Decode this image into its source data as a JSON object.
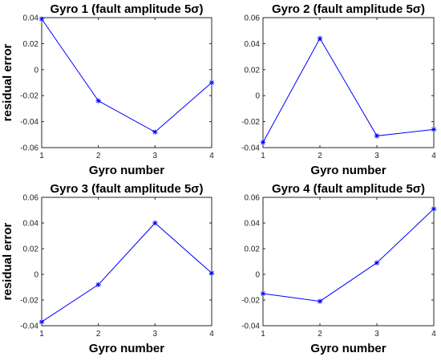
{
  "chart_data": [
    {
      "type": "line",
      "title": "Gyro 1 (fault amplitude 5σ)",
      "xlabel": "Gyro number",
      "ylabel": "residual error",
      "x": [
        1,
        2,
        3,
        4
      ],
      "values": [
        0.039,
        -0.024,
        -0.048,
        -0.01
      ],
      "xlim": [
        1,
        4
      ],
      "ylim": [
        -0.06,
        0.04
      ],
      "xticks": [
        "1",
        "2",
        "3",
        "4"
      ],
      "yticks": [
        "-0.06",
        "-0.04",
        "-0.02",
        "0",
        "0.02",
        "0.04"
      ],
      "ytick_values": [
        -0.06,
        -0.04,
        -0.02,
        0,
        0.02,
        0.04
      ],
      "line_color": "#0000ff",
      "marker": "asterisk",
      "grid": false
    },
    {
      "type": "line",
      "title": "Gyro 2 (fault amplitude 5σ)",
      "xlabel": "Gyro number",
      "ylabel": "",
      "x": [
        1,
        2,
        3,
        4
      ],
      "values": [
        -0.036,
        0.044,
        -0.031,
        -0.026
      ],
      "xlim": [
        1,
        4
      ],
      "ylim": [
        -0.04,
        0.06
      ],
      "xticks": [
        "1",
        "2",
        "3",
        "4"
      ],
      "yticks": [
        "-0.04",
        "-0.02",
        "0",
        "0.02",
        "0.04",
        "0.06"
      ],
      "ytick_values": [
        -0.04,
        -0.02,
        0,
        0.02,
        0.04,
        0.06
      ],
      "line_color": "#0000ff",
      "marker": "asterisk",
      "grid": false
    },
    {
      "type": "line",
      "title": "Gyro 3 (fault amplitude 5σ)",
      "xlabel": "Gyro number",
      "ylabel": "residual error",
      "x": [
        1,
        2,
        3,
        4
      ],
      "values": [
        -0.037,
        -0.008,
        0.04,
        0.001
      ],
      "xlim": [
        1,
        4
      ],
      "ylim": [
        -0.04,
        0.06
      ],
      "xticks": [
        "1",
        "2",
        "3",
        "4"
      ],
      "yticks": [
        "-0.04",
        "-0.02",
        "0",
        "0.02",
        "0.04",
        "0.06"
      ],
      "ytick_values": [
        -0.04,
        -0.02,
        0,
        0.02,
        0.04,
        0.06
      ],
      "line_color": "#0000ff",
      "marker": "asterisk",
      "grid": false
    },
    {
      "type": "line",
      "title": "Gyro 4 (fault amplitude 5σ)",
      "xlabel": "Gyro number",
      "ylabel": "",
      "x": [
        1,
        2,
        3,
        4
      ],
      "values": [
        -0.015,
        -0.021,
        0.009,
        0.051
      ],
      "xlim": [
        1,
        4
      ],
      "ylim": [
        -0.04,
        0.06
      ],
      "xticks": [
        "1",
        "2",
        "3",
        "4"
      ],
      "yticks": [
        "-0.04",
        "-0.02",
        "0",
        "0.02",
        "0.04",
        "0.06"
      ],
      "ytick_values": [
        -0.04,
        -0.02,
        0,
        0.02,
        0.04,
        0.06
      ],
      "line_color": "#0000ff",
      "marker": "asterisk",
      "grid": false
    }
  ]
}
